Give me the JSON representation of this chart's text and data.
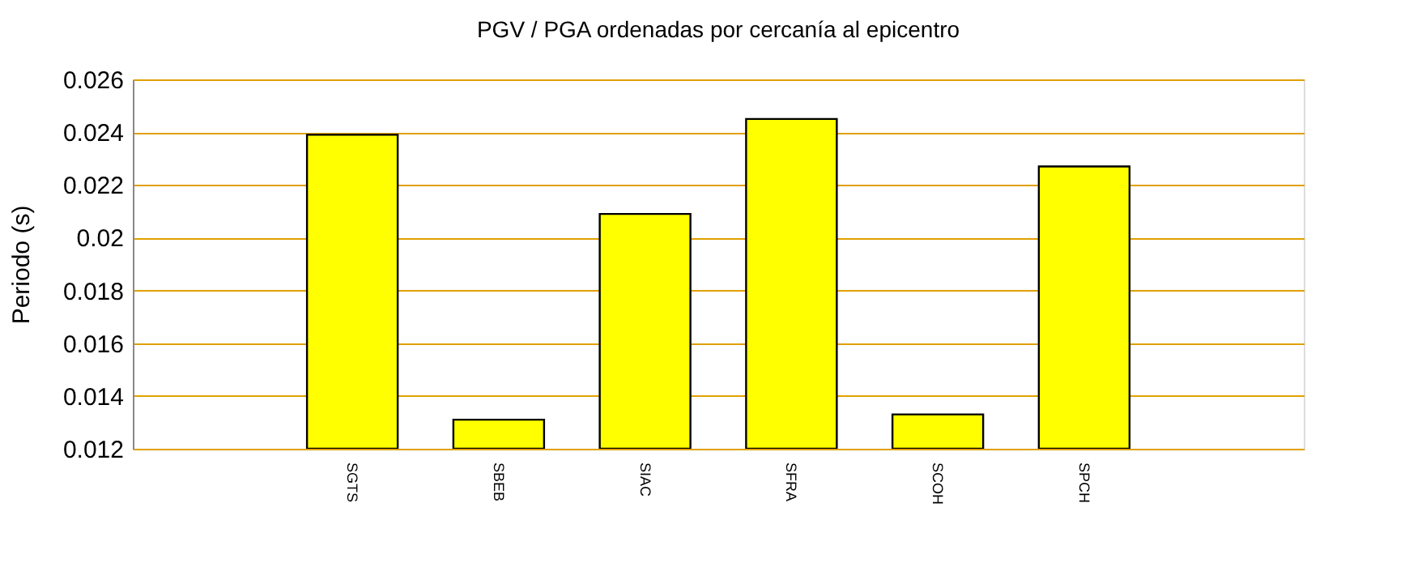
{
  "chart_data": {
    "type": "bar",
    "title": "PGV / PGA ordenadas por cercanía al epicentro",
    "ylabel": "Periodo (s)",
    "categories": [
      null,
      "SGTS",
      "SBEB",
      "SIAC",
      "SFRA",
      "SCOH",
      "SPCH",
      null
    ],
    "values": [
      null,
      0.0239,
      0.0131,
      0.0209,
      0.0245,
      0.0133,
      0.0227,
      null
    ],
    "color": "#ffff00",
    "ylim": [
      0.012,
      0.026
    ],
    "yticks": [
      0.012,
      0.014,
      0.016,
      0.018,
      0.02,
      0.022,
      0.024,
      0.026
    ],
    "grid": "y"
  }
}
